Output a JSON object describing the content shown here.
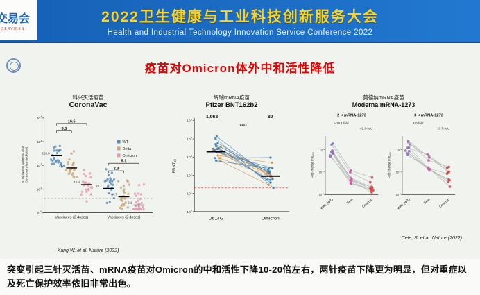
{
  "header": {
    "title_cn": "2022卫生健康与工业科技创新服务大会",
    "subtitle_en": "Health and Industrial Technology Innovation Service Conference 2022",
    "corner_logo": "交易会",
    "corner_logo_sub": "SERVICES"
  },
  "slide": {
    "title": "疫苗对Omicron体外中和活性降低",
    "conclusion": "突变引起三针灭活苗、mRNA疫苗对Omicron的中和活性下降10-20倍左右，两针疫苗下降更为明显，但对重症以及死亡保护效率依旧非常出色。"
  },
  "chart_data": [
    {
      "id": "coronavac",
      "type": "scatter",
      "vendor_cn": "科兴灭活疫苗",
      "title": "CoronaVac",
      "ylabel": "NT50 against authentic virus (reciprocal plasma dilution)",
      "ylim_log10": [
        0,
        4
      ],
      "lod": 4,
      "legend": [
        {
          "name": "WT",
          "color": "#5b8db8"
        },
        {
          "name": "Delta",
          "color": "#c9a87c"
        },
        {
          "name": "Omicron",
          "color": "#e39ab2"
        }
      ],
      "groups": [
        {
          "label": "Vaccinees (3 doses)",
          "gmt": [
            253.8,
            77.6,
            15.4
          ],
          "folds": [
            "16.5",
            "3.3"
          ]
        },
        {
          "label": "Vaccinees (2 doses)",
          "gmt": [
            10.7,
            4.7,
            2.1
          ],
          "folds": [
            "5.1",
            "2.3"
          ]
        }
      ],
      "n_per_cluster": 24,
      "citation": "Kang W. et al. Nature (2022)"
    },
    {
      "id": "pfizer",
      "type": "paired-line",
      "vendor_cn": "辉瑞mRNA疫苗",
      "title": "Pfizer BNT162b2",
      "ylabel": "FRNT50",
      "ylim_log10": [
        0,
        5
      ],
      "categories": [
        "D614G",
        "Omicron"
      ],
      "gmt": [
        1963,
        89
      ],
      "gmt_labels": [
        "1,963",
        "89"
      ],
      "significance": "****",
      "lod": 20,
      "n_pairs": 18,
      "line_colors": [
        "#3d7cb0",
        "#e0923f"
      ]
    },
    {
      "id": "moderna",
      "type": "paired-line-panels",
      "vendor_cn": "莫德纳mRNA疫苗",
      "title": "Moderna mRNA-1273",
      "dot_colors": [
        "#8f6fc0",
        "#c85a9e",
        "#d04545"
      ],
      "n_subjects": 9,
      "panels": [
        {
          "label": "2 × mRNA-1273",
          "ylabel": "Fold change in ID50",
          "categories": [
            "WA1 (WT)",
            "Beta",
            "Omicron"
          ],
          "fold_annotations": [
            "> 19.1 fold",
            "42.6-fold"
          ],
          "mean_fold": [
            1,
            19.1,
            42.6
          ]
        },
        {
          "label": "3 × mRNA-1273",
          "ylabel": "Fold change in ID50",
          "categories": [
            "WA1 (WT)",
            "Beta",
            "Omicron"
          ],
          "fold_annotations": [
            "4.0-fold",
            "16.7-fold"
          ],
          "mean_fold": [
            1,
            4.0,
            16.7
          ]
        }
      ],
      "citation": "Cele, S. et al. Nature (2022)"
    }
  ]
}
